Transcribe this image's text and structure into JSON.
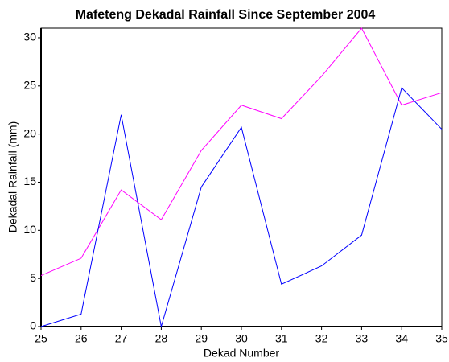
{
  "chart_data": {
    "type": "line",
    "title": "Mafeteng Dekadal Rainfall Since September 2004",
    "xlabel": "Dekad Number",
    "ylabel": "Dekadal Rainfall (mm)",
    "x": [
      25,
      26,
      27,
      28,
      29,
      30,
      31,
      32,
      33,
      34,
      35
    ],
    "series": [
      {
        "color": "#ff00ff",
        "values": [
          5.3,
          7.1,
          14.2,
          11.1,
          18.3,
          23.0,
          21.6,
          26.0,
          31.0,
          23.0,
          24.3
        ]
      },
      {
        "color": "#0000ff",
        "values": [
          0,
          1.3,
          22.0,
          0,
          14.5,
          20.7,
          4.4,
          6.3,
          9.5,
          24.8,
          20.5
        ]
      }
    ],
    "xlim": [
      25,
      35
    ],
    "xticks": [
      25,
      26,
      27,
      28,
      29,
      30,
      31,
      32,
      33,
      34,
      35
    ],
    "ylim": [
      0,
      31
    ],
    "yticks": [
      0,
      5,
      10,
      15,
      20,
      25,
      30
    ],
    "grid": false
  }
}
